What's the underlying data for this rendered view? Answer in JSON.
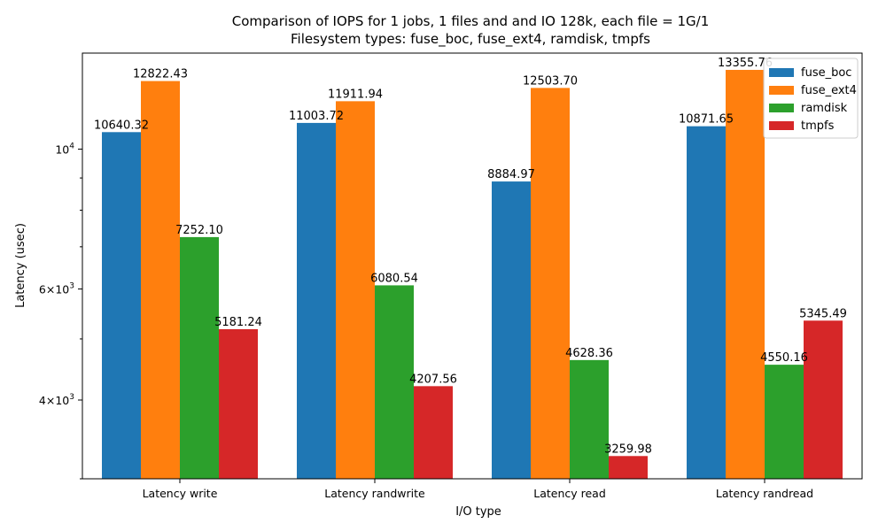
{
  "chart_data": {
    "type": "bar",
    "title_line1": "Comparison of IOPS for 1 jobs, 1 files and  and IO 128k, each file = 1G/1",
    "title_line2": "Filesystem types: fuse_boc, fuse_ext4, ramdisk, tmpfs",
    "xlabel": "I/O type",
    "ylabel": "Latency (usec)",
    "yscale": "log",
    "ylim": [
      3000,
      14200
    ],
    "yticks_major": [
      {
        "value": 4000,
        "base": "4×10",
        "exp": "3"
      },
      {
        "value": 6000,
        "base": "6×10",
        "exp": "3"
      },
      {
        "value": 10000,
        "base": "10",
        "exp": "4"
      }
    ],
    "yticks_minor": [
      3000,
      5000,
      7000,
      8000,
      9000
    ],
    "categories": [
      "Latency write",
      "Latency randwrite",
      "Latency read",
      "Latency randread"
    ],
    "series": [
      {
        "name": "fuse_boc",
        "color": "#1f77b4",
        "values": [
          10640.32,
          11003.72,
          8884.97,
          10871.65
        ],
        "labels": [
          "10640.32",
          "11003.72",
          "8884.97",
          "10871.65"
        ]
      },
      {
        "name": "fuse_ext4",
        "color": "#ff7f0e",
        "values": [
          12822.43,
          11911.94,
          12503.7,
          13355.76
        ],
        "labels": [
          "12822.43",
          "11911.94",
          "12503.70",
          "13355.76"
        ]
      },
      {
        "name": "ramdisk",
        "color": "#2ca02c",
        "values": [
          7252.1,
          6080.54,
          4628.36,
          4550.16
        ],
        "labels": [
          "7252.10",
          "6080.54",
          "4628.36",
          "4550.16"
        ]
      },
      {
        "name": "tmpfs",
        "color": "#d62728",
        "values": [
          5181.24,
          4207.56,
          3259.98,
          5345.49
        ],
        "labels": [
          "5181.24",
          "4207.56",
          "3259.98",
          "5345.49"
        ]
      }
    ],
    "grid": false,
    "legend_position": "top-right"
  }
}
